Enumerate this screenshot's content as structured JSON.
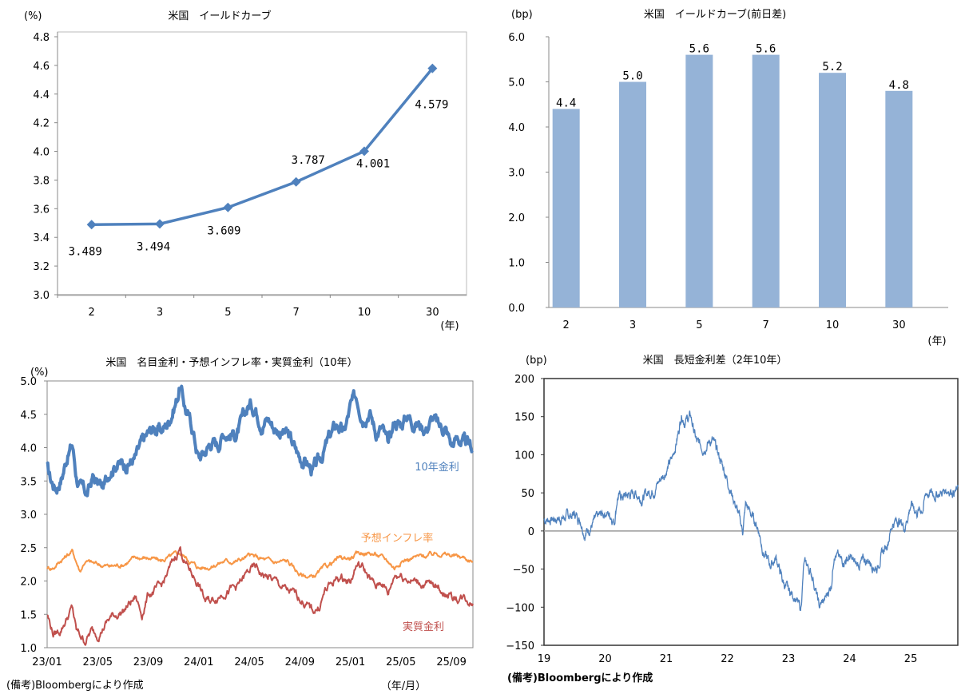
{
  "chart_data": [
    {
      "type": "line",
      "title": "米国　イールドカーブ",
      "ylabel": "(%)",
      "xlabel": "(年)",
      "categories": [
        "2",
        "3",
        "5",
        "7",
        "10",
        "30"
      ],
      "values": [
        3.489,
        3.494,
        3.609,
        3.787,
        4.001,
        4.579
      ],
      "data_labels": [
        "3.489",
        "3.494",
        "3.609",
        "3.787",
        "4.001",
        "4.579"
      ],
      "ylim": [
        3.0,
        4.8
      ],
      "yticks": [
        "3.0",
        "3.2",
        "3.4",
        "3.6",
        "3.8",
        "4.0",
        "4.2",
        "4.4",
        "4.6",
        "4.8"
      ],
      "color": "#4F81BD",
      "marker": "diamond"
    },
    {
      "type": "bar",
      "title": "米国　イールドカーブ(前日差)",
      "ylabel": "(bp)",
      "xlabel": "(年)",
      "categories": [
        "2",
        "3",
        "5",
        "7",
        "10",
        "30"
      ],
      "values": [
        4.4,
        5.0,
        5.6,
        5.6,
        5.2,
        4.8
      ],
      "data_labels": [
        "4.4",
        "5.0",
        "5.6",
        "5.6",
        "5.2",
        "4.8"
      ],
      "ylim": [
        0,
        6
      ],
      "yticks": [
        "0.0",
        "1.0",
        "2.0",
        "3.0",
        "4.0",
        "5.0",
        "6.0"
      ],
      "color": "#95B3D7"
    },
    {
      "type": "line",
      "title": "米国　名目金利・予想インフレ率・実質金利（10年）",
      "ylabel": "(%)",
      "xlabel": "（年/月）",
      "note": "(備考)Bloombergにより作成",
      "x_unit": "months since 23/01",
      "xlim": [
        0,
        33.7
      ],
      "ylim": [
        1.0,
        5.0
      ],
      "yticks": [
        "1.0",
        "1.5",
        "2.0",
        "2.5",
        "3.0",
        "3.5",
        "4.0",
        "4.5",
        "5.0"
      ],
      "xticks": [
        "23/01",
        "23/05",
        "23/09",
        "24/01",
        "24/05",
        "24/09",
        "25/01",
        "25/05",
        "25/09"
      ],
      "series": [
        {
          "name": "10年金利",
          "color": "#4F81BD",
          "width": 4,
          "x": [
            0,
            0.3,
            0.7,
            1.2,
            1.6,
            2.0,
            2.3,
            2.6,
            3.2,
            3.6,
            4.0,
            4.5,
            5.0,
            5.5,
            6,
            7,
            7.5,
            8,
            8.5,
            9,
            9.5,
            10,
            10.3,
            10.5,
            11,
            11.5,
            12,
            12.5,
            13,
            13.5,
            14,
            15,
            15.5,
            16,
            16.5,
            17,
            17.5,
            18,
            19,
            20,
            20.5,
            21,
            21.5,
            22,
            22.5,
            23,
            23.5,
            24,
            24.5,
            25,
            25.5,
            26,
            26.5,
            27,
            27.5,
            28,
            28.5,
            29,
            30,
            30.5,
            31,
            31.5,
            32,
            32.5,
            33,
            33.7
          ],
          "y": [
            3.7,
            3.5,
            3.4,
            3.6,
            3.9,
            4.05,
            3.6,
            3.4,
            3.3,
            3.55,
            3.45,
            3.4,
            3.7,
            3.8,
            3.75,
            3.85,
            4.05,
            4.2,
            4.3,
            4.25,
            4.35,
            4.6,
            4.75,
            4.95,
            4.55,
            4.3,
            3.85,
            3.95,
            4.1,
            4.05,
            4.25,
            4.2,
            4.4,
            4.65,
            4.6,
            4.4,
            4.45,
            4.3,
            4.2,
            3.85,
            3.8,
            3.65,
            3.75,
            4.0,
            4.2,
            4.35,
            4.2,
            4.6,
            4.75,
            4.5,
            4.6,
            4.25,
            4.3,
            4.0,
            4.4,
            4.35,
            4.5,
            4.4,
            4.3,
            4.45,
            4.3,
            4.3,
            4.05,
            4.15,
            4.05,
            3.98
          ]
        },
        {
          "name": "予想インフレ率",
          "color": "#F79646",
          "width": 2,
          "x": [
            0,
            0.5,
            1,
            2,
            2.3,
            2.6,
            3,
            4,
            5,
            6,
            7,
            8,
            9,
            10,
            10.5,
            11,
            12,
            13,
            14,
            15,
            16,
            17,
            18,
            19,
            20,
            21,
            22,
            23,
            24,
            25,
            26,
            27,
            27.5,
            28,
            29,
            30,
            31,
            32,
            33,
            33.7
          ],
          "y": [
            2.2,
            2.2,
            2.3,
            2.45,
            2.3,
            2.15,
            2.3,
            2.25,
            2.22,
            2.25,
            2.35,
            2.35,
            2.3,
            2.38,
            2.42,
            2.35,
            2.2,
            2.22,
            2.3,
            2.3,
            2.38,
            2.33,
            2.28,
            2.3,
            2.1,
            2.05,
            2.2,
            2.33,
            2.35,
            2.43,
            2.4,
            2.3,
            2.2,
            2.3,
            2.35,
            2.38,
            2.42,
            2.38,
            2.35,
            2.3
          ]
        },
        {
          "name": "実質金利",
          "color": "#C0504D",
          "width": 2,
          "x": [
            0,
            0.5,
            1,
            2,
            2.3,
            3,
            3.5,
            4,
            5,
            6,
            7,
            7.5,
            8,
            9,
            10,
            10.5,
            11,
            12,
            12.5,
            13,
            14,
            15,
            16,
            16.5,
            17,
            18,
            19,
            20,
            21,
            21.5,
            22,
            23,
            24,
            24.5,
            25,
            26,
            26.5,
            27,
            27.5,
            28,
            29,
            30,
            31,
            32,
            33,
            33.7
          ],
          "y": [
            1.5,
            1.2,
            1.25,
            1.6,
            1.25,
            1.1,
            1.25,
            1.2,
            1.45,
            1.55,
            1.75,
            1.5,
            1.8,
            1.9,
            2.3,
            2.5,
            2.25,
            1.95,
            1.7,
            1.7,
            1.85,
            1.9,
            2.15,
            2.2,
            2.1,
            2.0,
            1.85,
            1.75,
            1.55,
            1.6,
            1.85,
            2.05,
            2.0,
            2.25,
            2.2,
            1.9,
            2.0,
            1.8,
            2.1,
            2.1,
            2.0,
            1.95,
            1.9,
            1.75,
            1.75,
            1.68
          ]
        }
      ]
    },
    {
      "type": "line",
      "title": "米国　長短金利差（2年10年）",
      "ylabel": "(bp)",
      "note": "(備考)Bloombergにより作成",
      "x_unit": "years since 2019",
      "xlim": [
        0,
        6.77
      ],
      "ylim": [
        -150,
        200
      ],
      "yticks": [
        "-150",
        "-100",
        "-50",
        "0",
        "50",
        "100",
        "150",
        "200"
      ],
      "xticks": [
        "19",
        "20",
        "21",
        "22",
        "23",
        "24",
        "25"
      ],
      "series": [
        {
          "name": "2年10年",
          "color": "#4F81BD",
          "width": 1.3,
          "x": [
            0,
            0.3,
            0.5,
            0.6,
            0.67,
            0.8,
            1.0,
            1.1,
            1.15,
            1.2,
            1.3,
            1.5,
            1.6,
            1.7,
            1.8,
            2.0,
            2.1,
            2.2,
            2.25,
            2.3,
            2.4,
            2.5,
            2.6,
            2.75,
            2.85,
            2.95,
            3.05,
            3.15,
            3.25,
            3.3,
            3.4,
            3.5,
            3.6,
            3.7,
            3.8,
            3.9,
            4.0,
            4.1,
            4.2,
            4.25,
            4.3,
            4.4,
            4.5,
            4.6,
            4.7,
            4.75,
            4.85,
            5.0,
            5.1,
            5.3,
            5.45,
            5.5,
            5.6,
            5.7,
            5.8,
            5.9,
            6.0,
            6.1,
            6.2,
            6.25,
            6.4,
            6.5,
            6.6,
            6.77
          ],
          "y": [
            15,
            17,
            22,
            15,
            -3,
            10,
            25,
            20,
            13,
            45,
            45,
            50,
            43,
            50,
            55,
            80,
            95,
            130,
            155,
            145,
            150,
            115,
            110,
            120,
            100,
            80,
            55,
            30,
            0,
            35,
            20,
            5,
            -30,
            -45,
            -35,
            -65,
            -80,
            -85,
            -105,
            -45,
            -45,
            -60,
            -100,
            -90,
            -70,
            -25,
            -40,
            -35,
            -45,
            -38,
            -48,
            -35,
            -20,
            10,
            15,
            5,
            35,
            25,
            30,
            50,
            48,
            50,
            55,
            52
          ]
        }
      ]
    }
  ]
}
